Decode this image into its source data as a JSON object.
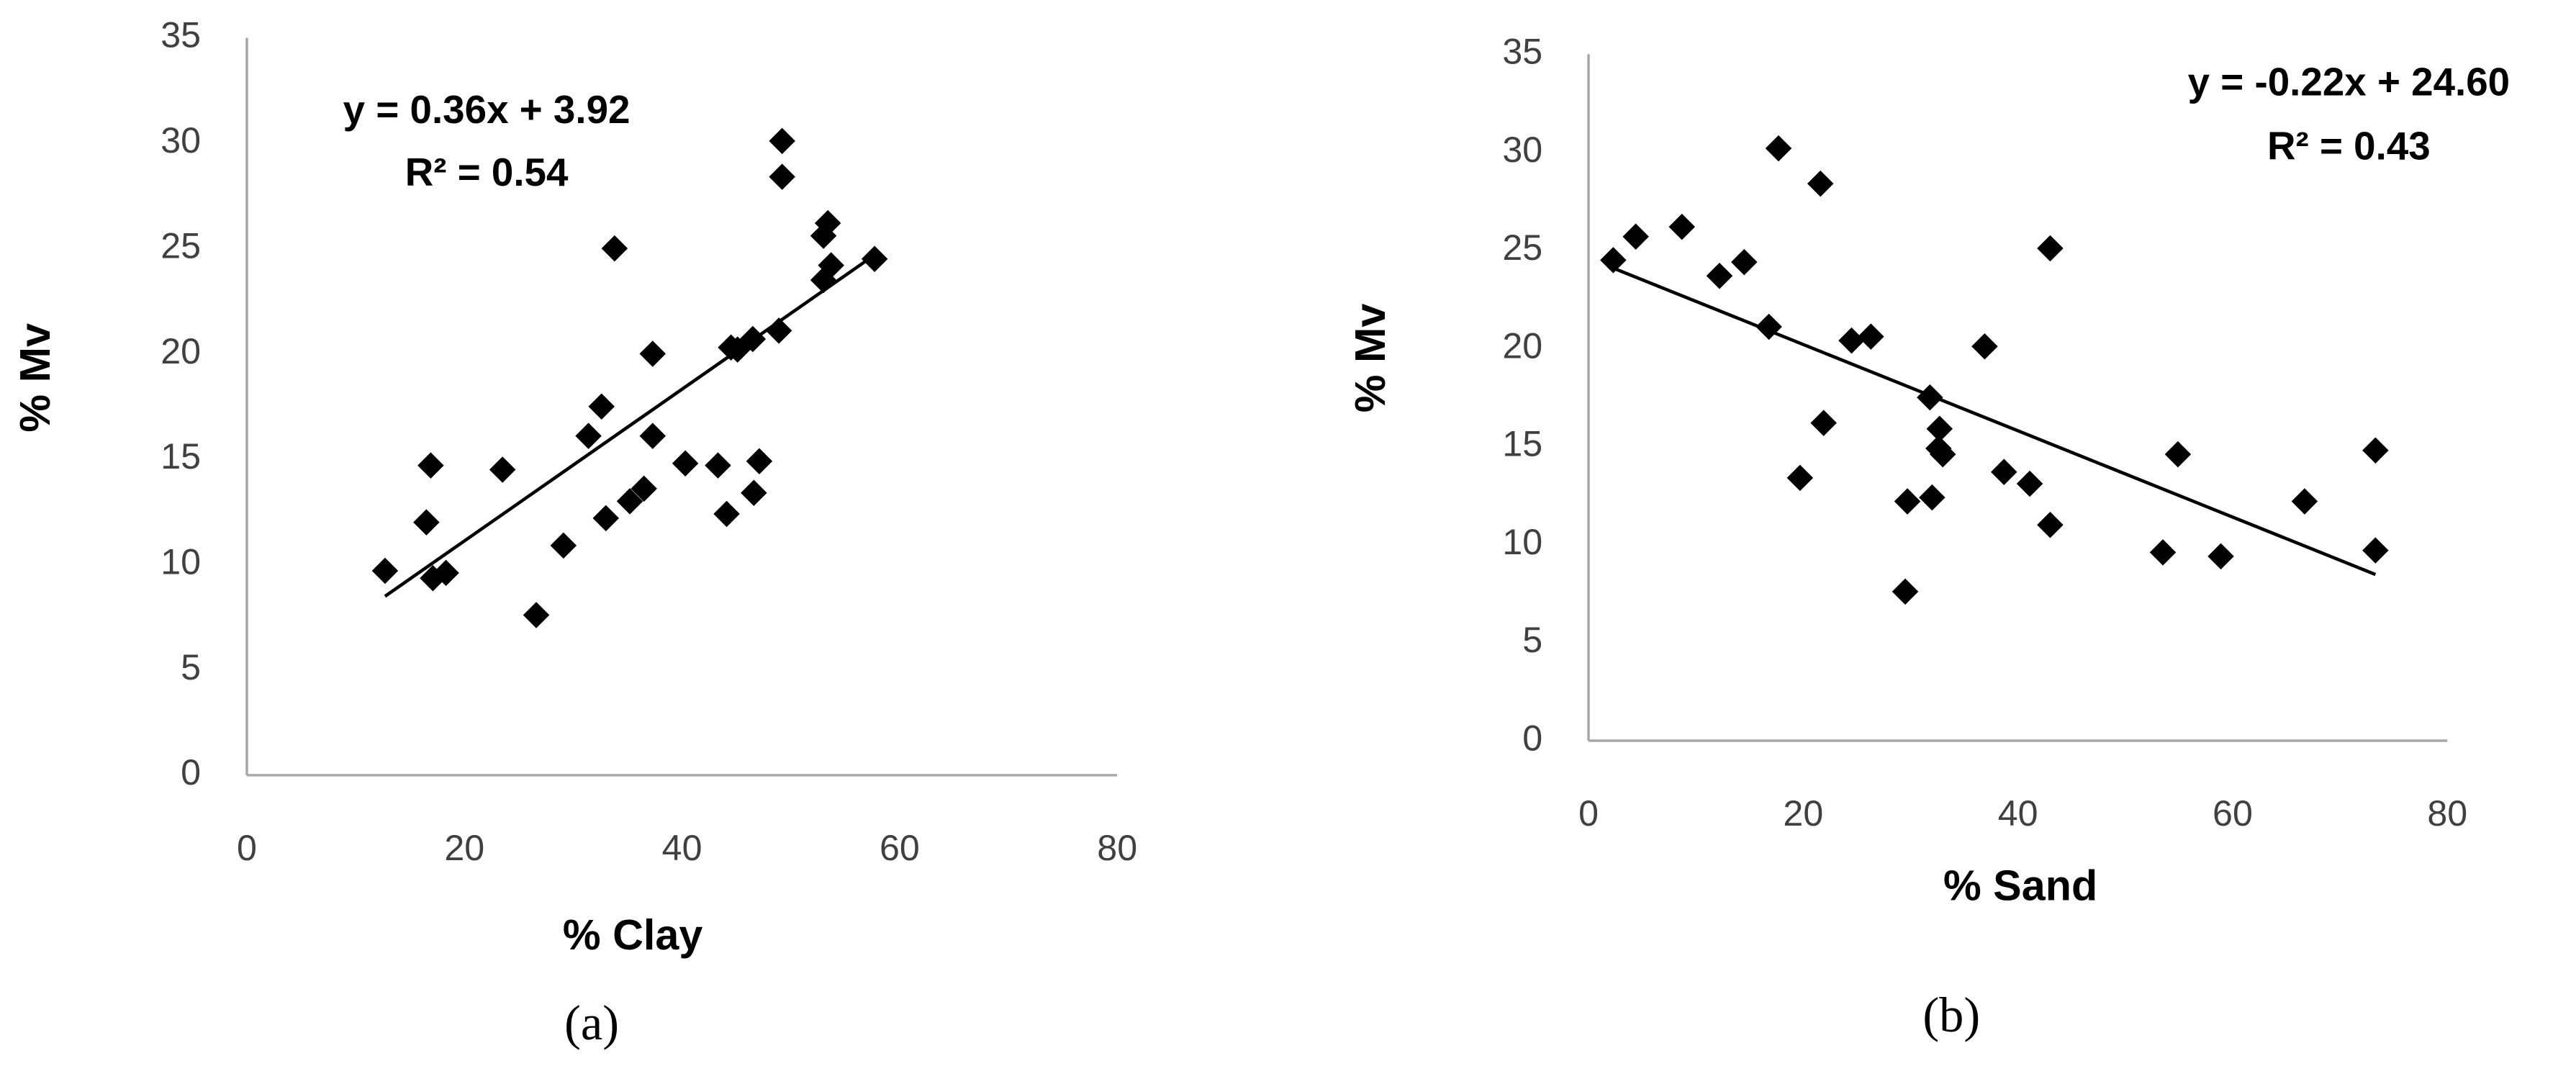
{
  "chart_data": [
    {
      "type": "scatter",
      "caption": "(a)",
      "xlabel": "% Clay",
      "ylabel": "% Mv",
      "equation": "y = 0.36x + 3.92",
      "r2_label": "R² = 0.54",
      "trendline": {
        "slope": 0.36,
        "intercept": 3.92
      },
      "color": "#000000",
      "x": [
        12.7,
        16.9,
        16.5,
        17.1,
        18.3,
        23.5,
        26.6,
        29.1,
        31.4,
        32.6,
        33.0,
        33.8,
        35.2,
        36.5,
        37.3,
        37.3,
        40.3,
        43.3,
        44.1,
        44.5,
        45.1,
        46.5,
        46.6,
        47.1,
        48.9,
        49.2,
        49.2,
        53.0,
        53.0,
        53.4,
        53.7,
        57.7
      ],
      "values": [
        9.7,
        14.7,
        12.0,
        9.35,
        9.6,
        14.5,
        7.6,
        10.9,
        16.1,
        17.5,
        12.2,
        25.0,
        13.0,
        13.6,
        16.1,
        20.0,
        14.8,
        14.7,
        12.4,
        20.3,
        20.2,
        20.7,
        13.4,
        14.9,
        21.1,
        28.4,
        30.1,
        23.5,
        25.6,
        26.2,
        24.2,
        24.5
      ],
      "xlim": [
        0,
        80
      ],
      "xticks": [
        0,
        20,
        40,
        60,
        80
      ],
      "ylim": [
        0,
        35
      ],
      "yticks": [
        0,
        5,
        10,
        15,
        20,
        25,
        30,
        35
      ]
    },
    {
      "type": "scatter",
      "caption": "(b)",
      "xlabel": "% Sand",
      "ylabel": "% Mv",
      "equation": "y = -0.22x + 24.60",
      "r2_label": "R² = 0.43",
      "trendline": {
        "slope": -0.22,
        "intercept": 24.6
      },
      "color": "#000000",
      "x": [
        2.3,
        4.4,
        8.7,
        12.2,
        14.5,
        16.8,
        17.7,
        19.7,
        21.6,
        21.9,
        24.5,
        26.3,
        29.5,
        29.7,
        31.8,
        32.0,
        32.6,
        32.7,
        33.0,
        36.9,
        38.7,
        41.1,
        43.0,
        43.0,
        53.5,
        54.9,
        58.9,
        66.7,
        73.3,
        73.3
      ],
      "values": [
        24.5,
        25.7,
        26.2,
        23.7,
        24.4,
        21.1,
        30.2,
        13.4,
        28.4,
        16.2,
        20.4,
        20.6,
        7.6,
        12.2,
        17.5,
        12.4,
        14.9,
        15.9,
        14.6,
        20.1,
        13.7,
        13.1,
        11.0,
        25.1,
        9.6,
        14.6,
        9.4,
        12.2,
        14.8,
        9.7
      ],
      "xlim": [
        0,
        80
      ],
      "xticks": [
        0,
        20,
        40,
        60,
        80
      ],
      "ylim": [
        0,
        35
      ],
      "yticks": [
        0,
        5,
        10,
        15,
        20,
        25,
        30,
        35
      ]
    }
  ]
}
